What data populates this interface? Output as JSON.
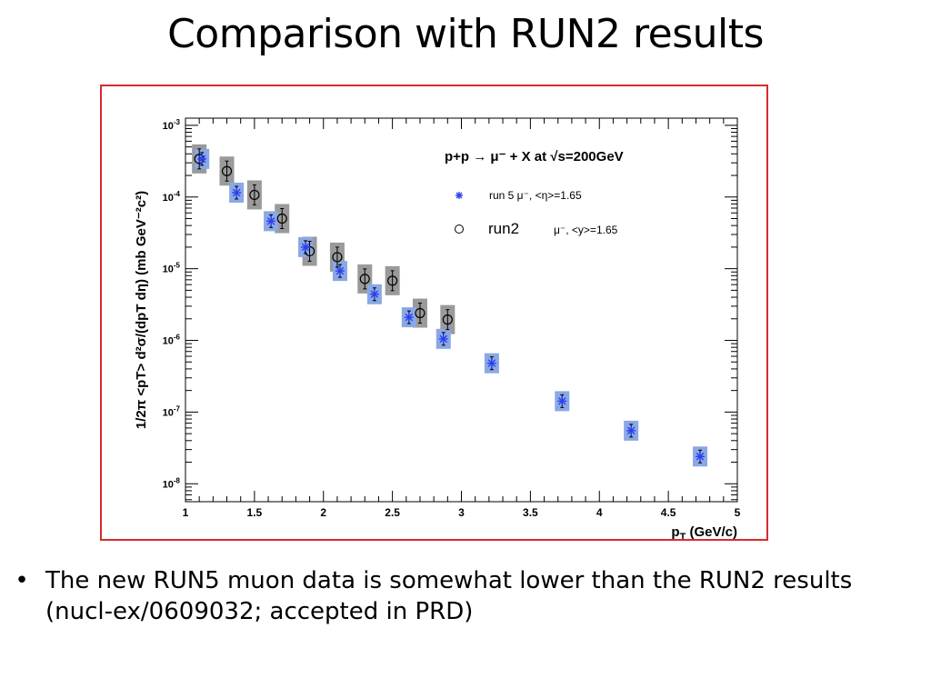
{
  "slide": {
    "title": "Comparison with RUN2 results",
    "bullet_symbol": "•",
    "bullet_text": "The new RUN5 muon data is somewhat lower than the RUN2 results (nucl-ex/0609032; accepted in PRD)"
  },
  "colors": {
    "frame": "#d62b2b",
    "run5_marker": "#2c3ff0",
    "run5_box": "#8aa8e6",
    "run2_box": "#9a9a9a"
  },
  "chart_data": {
    "type": "scatter",
    "log_y": true,
    "xlim": [
      1,
      5
    ],
    "ylim_exp": [
      -8.25,
      -2.9
    ],
    "x_ticks": [
      "1",
      "1.5",
      "2",
      "2.5",
      "3",
      "3.5",
      "4",
      "4.5",
      "5"
    ],
    "y_ticks": [
      {
        "base": "10",
        "exp": "-3"
      },
      {
        "base": "10",
        "exp": "-4"
      },
      {
        "base": "10",
        "exp": "-5"
      },
      {
        "base": "10",
        "exp": "-6"
      },
      {
        "base": "10",
        "exp": "-7"
      },
      {
        "base": "10",
        "exp": "-8"
      }
    ],
    "xlabel": {
      "main": "p",
      "sub": "T",
      "rest": " (GeV/c)"
    },
    "ylabel": "1/2π <pT> d²σ/(dpT dη) (mb GeV⁻²c²)",
    "header": "p+p → μ⁻ + X at √s=200GeV",
    "legend": [
      {
        "marker": "star",
        "label": "run 5 μ⁻, <η>=1.65"
      },
      {
        "marker": "circle",
        "label_main": "run2",
        "label_extra": "μ⁻, <y>=1.65"
      }
    ],
    "series": [
      {
        "name": "run 5 μ⁻, <η>=1.65",
        "marker": "star",
        "x": [
          1.12,
          1.37,
          1.62,
          1.87,
          2.12,
          2.37,
          2.62,
          2.87,
          3.22,
          3.73,
          4.23,
          4.73
        ],
        "y": [
          0.00034,
          0.000115,
          4.6e-05,
          2e-05,
          9.3e-06,
          4.4e-06,
          2.1e-06,
          1.05e-06,
          4.8e-07,
          1.42e-07,
          5.5e-08,
          2.4e-08
        ]
      },
      {
        "name": "run2 μ⁻, <y>=1.65",
        "marker": "circle",
        "x": [
          1.1,
          1.3,
          1.5,
          1.7,
          1.9,
          2.1,
          2.3,
          2.5,
          2.7,
          2.9
        ],
        "y": [
          0.00034,
          0.00023,
          0.000107,
          5e-05,
          1.75e-05,
          1.45e-05,
          7.2e-06,
          6.8e-06,
          2.4e-06,
          1.95e-06
        ]
      }
    ]
  }
}
